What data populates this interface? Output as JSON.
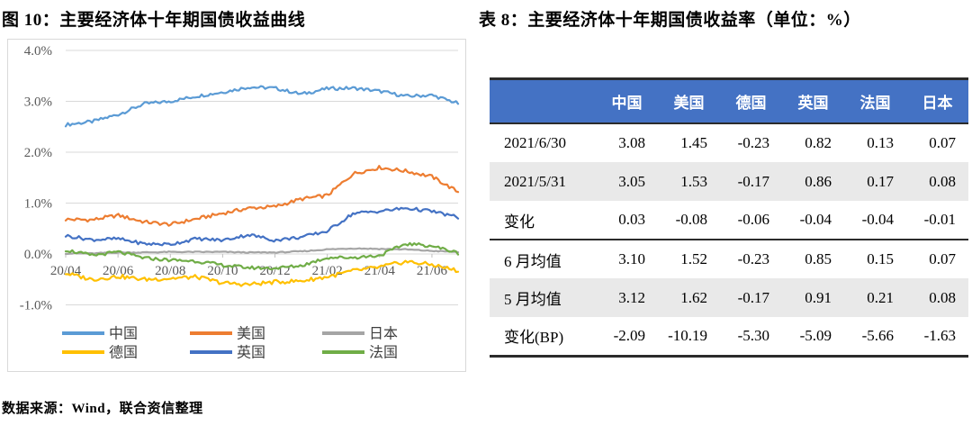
{
  "figure": {
    "title": "图 10：主要经济体十年期国债收益曲线",
    "source_note": "数据来源：Wind，联合资信整理"
  },
  "table_section": {
    "title": "表 8：主要经济体十年期国债收益率（单位：%）",
    "header_bg": "#4472C4",
    "header_text_color": "#FFFFFF",
    "stripe_bg": "#E9E9E9",
    "columns": [
      "",
      "中国",
      "美国",
      "德国",
      "英国",
      "法国",
      "日本"
    ],
    "rows": [
      {
        "label": "2021/6/30",
        "values": [
          "3.08",
          "1.45",
          "-0.23",
          "0.82",
          "0.13",
          "0.07"
        ],
        "shaded": false,
        "divider_below": false
      },
      {
        "label": "2021/5/31",
        "values": [
          "3.05",
          "1.53",
          "-0.17",
          "0.86",
          "0.17",
          "0.08"
        ],
        "shaded": true,
        "divider_below": false
      },
      {
        "label": "变化",
        "values": [
          "0.03",
          "-0.08",
          "-0.06",
          "-0.04",
          "-0.04",
          "-0.01"
        ],
        "shaded": false,
        "divider_below": true
      },
      {
        "label": "6 月均值",
        "values": [
          "3.10",
          "1.52",
          "-0.23",
          "0.85",
          "0.15",
          "0.07"
        ],
        "shaded": false,
        "divider_below": false
      },
      {
        "label": "5 月均值",
        "values": [
          "3.12",
          "1.62",
          "-0.17",
          "0.91",
          "0.21",
          "0.08"
        ],
        "shaded": true,
        "divider_below": false
      },
      {
        "label": "变化(BP)",
        "values": [
          "-2.09",
          "-10.19",
          "-5.30",
          "-5.09",
          "-5.66",
          "-1.63"
        ],
        "shaded": false,
        "divider_below": false
      }
    ]
  },
  "chart_data": {
    "type": "line",
    "title": "主要经济体十年期国债收益曲线",
    "xlabel": "",
    "ylabel": "",
    "ylim": [
      -1.0,
      4.0
    ],
    "grid": true,
    "legend_position": "bottom",
    "gridline_color": "#D9D9D9",
    "x": [
      "20/04",
      "20/05",
      "20/06",
      "20/07",
      "20/08",
      "20/09",
      "20/10",
      "20/11",
      "20/12",
      "21/01",
      "21/02",
      "21/03",
      "21/04",
      "21/05",
      "21/06",
      "21/07"
    ],
    "x_tick_labels": [
      "20/04",
      "20/06",
      "20/08",
      "20/10",
      "20/12",
      "21/02",
      "21/04",
      "21/06"
    ],
    "y_ticks": [
      {
        "value": 4,
        "label": "4.0%"
      },
      {
        "value": 3,
        "label": "3.0%"
      },
      {
        "value": 2,
        "label": "2.0%"
      },
      {
        "value": 1,
        "label": "1.0%"
      },
      {
        "value": 0,
        "label": "0.0%"
      },
      {
        "value": -1,
        "label": "-1.0%"
      }
    ],
    "series": [
      {
        "name": "中国",
        "key": "china",
        "color": "#5B9BD5",
        "jitter": 0.032,
        "values": [
          2.54,
          2.6,
          2.74,
          2.95,
          3.0,
          3.1,
          3.18,
          3.28,
          3.26,
          3.14,
          3.25,
          3.26,
          3.2,
          3.1,
          3.12,
          2.96
        ]
      },
      {
        "name": "美国",
        "key": "usa",
        "color": "#ED7D31",
        "jitter": 0.035,
        "values": [
          0.68,
          0.67,
          0.76,
          0.63,
          0.58,
          0.69,
          0.8,
          0.9,
          0.93,
          1.08,
          1.15,
          1.58,
          1.7,
          1.63,
          1.52,
          1.22
        ]
      },
      {
        "name": "日本",
        "key": "japan",
        "color": "#A5A5A5",
        "jitter": 0.01,
        "values": [
          0.01,
          0.01,
          0.03,
          0.03,
          0.04,
          0.04,
          0.04,
          0.03,
          0.03,
          0.05,
          0.09,
          0.11,
          0.1,
          0.09,
          0.06,
          0.04
        ]
      },
      {
        "name": "德国",
        "key": "germany",
        "color": "#FFC000",
        "jitter": 0.04,
        "values": [
          -0.38,
          -0.5,
          -0.44,
          -0.5,
          -0.48,
          -0.45,
          -0.57,
          -0.6,
          -0.55,
          -0.53,
          -0.45,
          -0.33,
          -0.26,
          -0.15,
          -0.21,
          -0.33
        ]
      },
      {
        "name": "英国",
        "key": "uk",
        "color": "#4472C4",
        "jitter": 0.032,
        "values": [
          0.36,
          0.28,
          0.3,
          0.2,
          0.19,
          0.3,
          0.27,
          0.38,
          0.27,
          0.33,
          0.45,
          0.8,
          0.84,
          0.9,
          0.84,
          0.72
        ]
      },
      {
        "name": "法国",
        "key": "france",
        "color": "#70AD47",
        "jitter": 0.032,
        "values": [
          0.08,
          -0.03,
          0.04,
          -0.08,
          -0.12,
          -0.14,
          -0.22,
          -0.27,
          -0.28,
          -0.23,
          -0.07,
          -0.07,
          -0.03,
          0.2,
          0.16,
          0.02
        ]
      }
    ],
    "draw_order": [
      2,
      3,
      5,
      4,
      1,
      0
    ]
  }
}
